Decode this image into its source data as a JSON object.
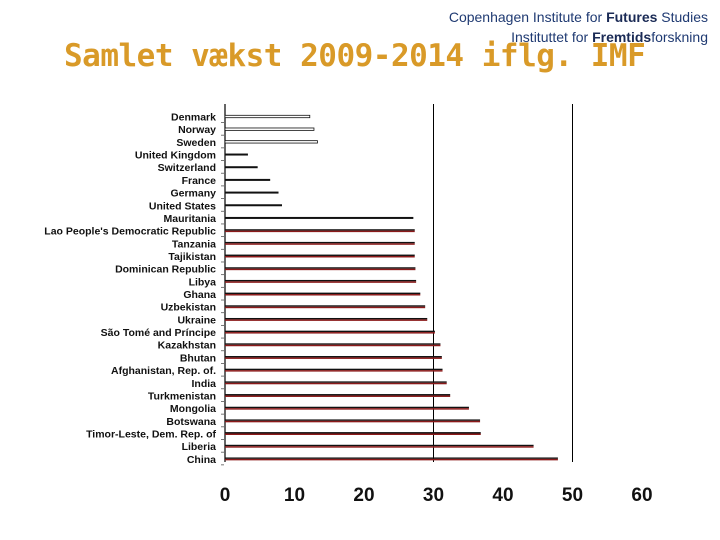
{
  "header": {
    "institute_line1_prefix": "Copenhagen Institute for ",
    "institute_line1_bold": "Futures",
    "institute_line1_suffix": " Studies",
    "institute_line2_prefix": "Instituttet for ",
    "institute_line2_bold": "Fremtids",
    "institute_line2_suffix": "forskning"
  },
  "slide_title": "Samlet vækst 2009-2014 iflg. IMF",
  "colors": {
    "title": "#d99a28",
    "institute_text": "#1f3a72",
    "bar_dark": "#111111",
    "bar_light": "#ffffff",
    "bar_red": "#8b1a1a",
    "gridline": "#000000"
  },
  "chart_data": {
    "type": "bar",
    "orientation": "horizontal",
    "title": "",
    "xlabel": "",
    "ylabel": "",
    "xlim": [
      0,
      60
    ],
    "x_ticks": [
      "0",
      "10",
      "20",
      "30",
      "40",
      "50",
      "60"
    ],
    "grid": "vertical lines at 30, 50",
    "legend": "none",
    "categories": [
      "Denmark",
      "Norway",
      "Sweden",
      "United Kingdom",
      "Switzerland",
      "France",
      "Germany",
      "United States",
      "Mauritania",
      "Lao People's Democratic Republic",
      "Tanzania",
      "Tajikistan",
      "Dominican Republic",
      "Libya",
      "Ghana",
      "Uzbekistan",
      "Ukraine",
      "São Tomé and Príncipe",
      "Kazakhstan",
      "Bhutan",
      "Afghanistan, Rep. of.",
      "India",
      "Turkmenistan",
      "Mongolia",
      "Botswana",
      "Timor-Leste, Dem. Rep. of",
      "Liberia",
      "China"
    ],
    "values": [
      12.2,
      12.8,
      13.3,
      3.3,
      4.7,
      6.5,
      7.7,
      8.2,
      27.1,
      27.3,
      27.3,
      27.3,
      27.4,
      27.5,
      28.1,
      28.8,
      29.1,
      30.2,
      31.0,
      31.2,
      31.3,
      31.9,
      32.4,
      35.1,
      36.7,
      36.8,
      44.4,
      47.9
    ],
    "bar_styles": [
      "outlined",
      "outlined",
      "outlined",
      "dark",
      "dark",
      "dark",
      "dark",
      "dark",
      "dark",
      "red",
      "red",
      "red",
      "red",
      "red",
      "red",
      "red",
      "red",
      "red",
      "red",
      "red",
      "red",
      "red",
      "red",
      "red",
      "red",
      "red",
      "red",
      "red"
    ]
  }
}
